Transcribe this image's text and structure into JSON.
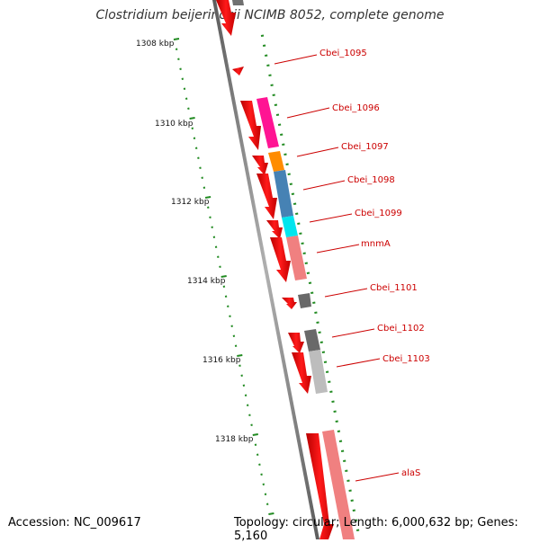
{
  "title": "Clostridium beijerinckii NCIMB 8052, complete genome",
  "footer": {
    "accession_label": "Accession: NC_009617",
    "topology": "Topology: circular;",
    "length": "Length: 6,000,632 bp;",
    "genes": "Genes: 5,160"
  },
  "ticks": [
    "1308 kbp",
    "1310 kbp",
    "1312 kbp",
    "1314 kbp",
    "1316 kbp",
    "1318 kbp"
  ],
  "gene_labels": [
    "Cbei_1095",
    "Cbei_1096",
    "Cbei_1097",
    "Cbei_1098",
    "Cbei_1099",
    "mnmA",
    "Cbei_1101",
    "Cbei_1102",
    "Cbei_1103",
    "alaS"
  ],
  "colors": {
    "cds": "#ee0000",
    "label": "#cc0000",
    "tick": "#228b22",
    "backbone": "#808080",
    "leader": "#cc0000",
    "category_colors": [
      "#ff1493",
      "#ff8c00",
      "#4682b4",
      "#00e5ee",
      "#f08080",
      "#696969",
      "#a9a9a9",
      "#f08080"
    ]
  }
}
